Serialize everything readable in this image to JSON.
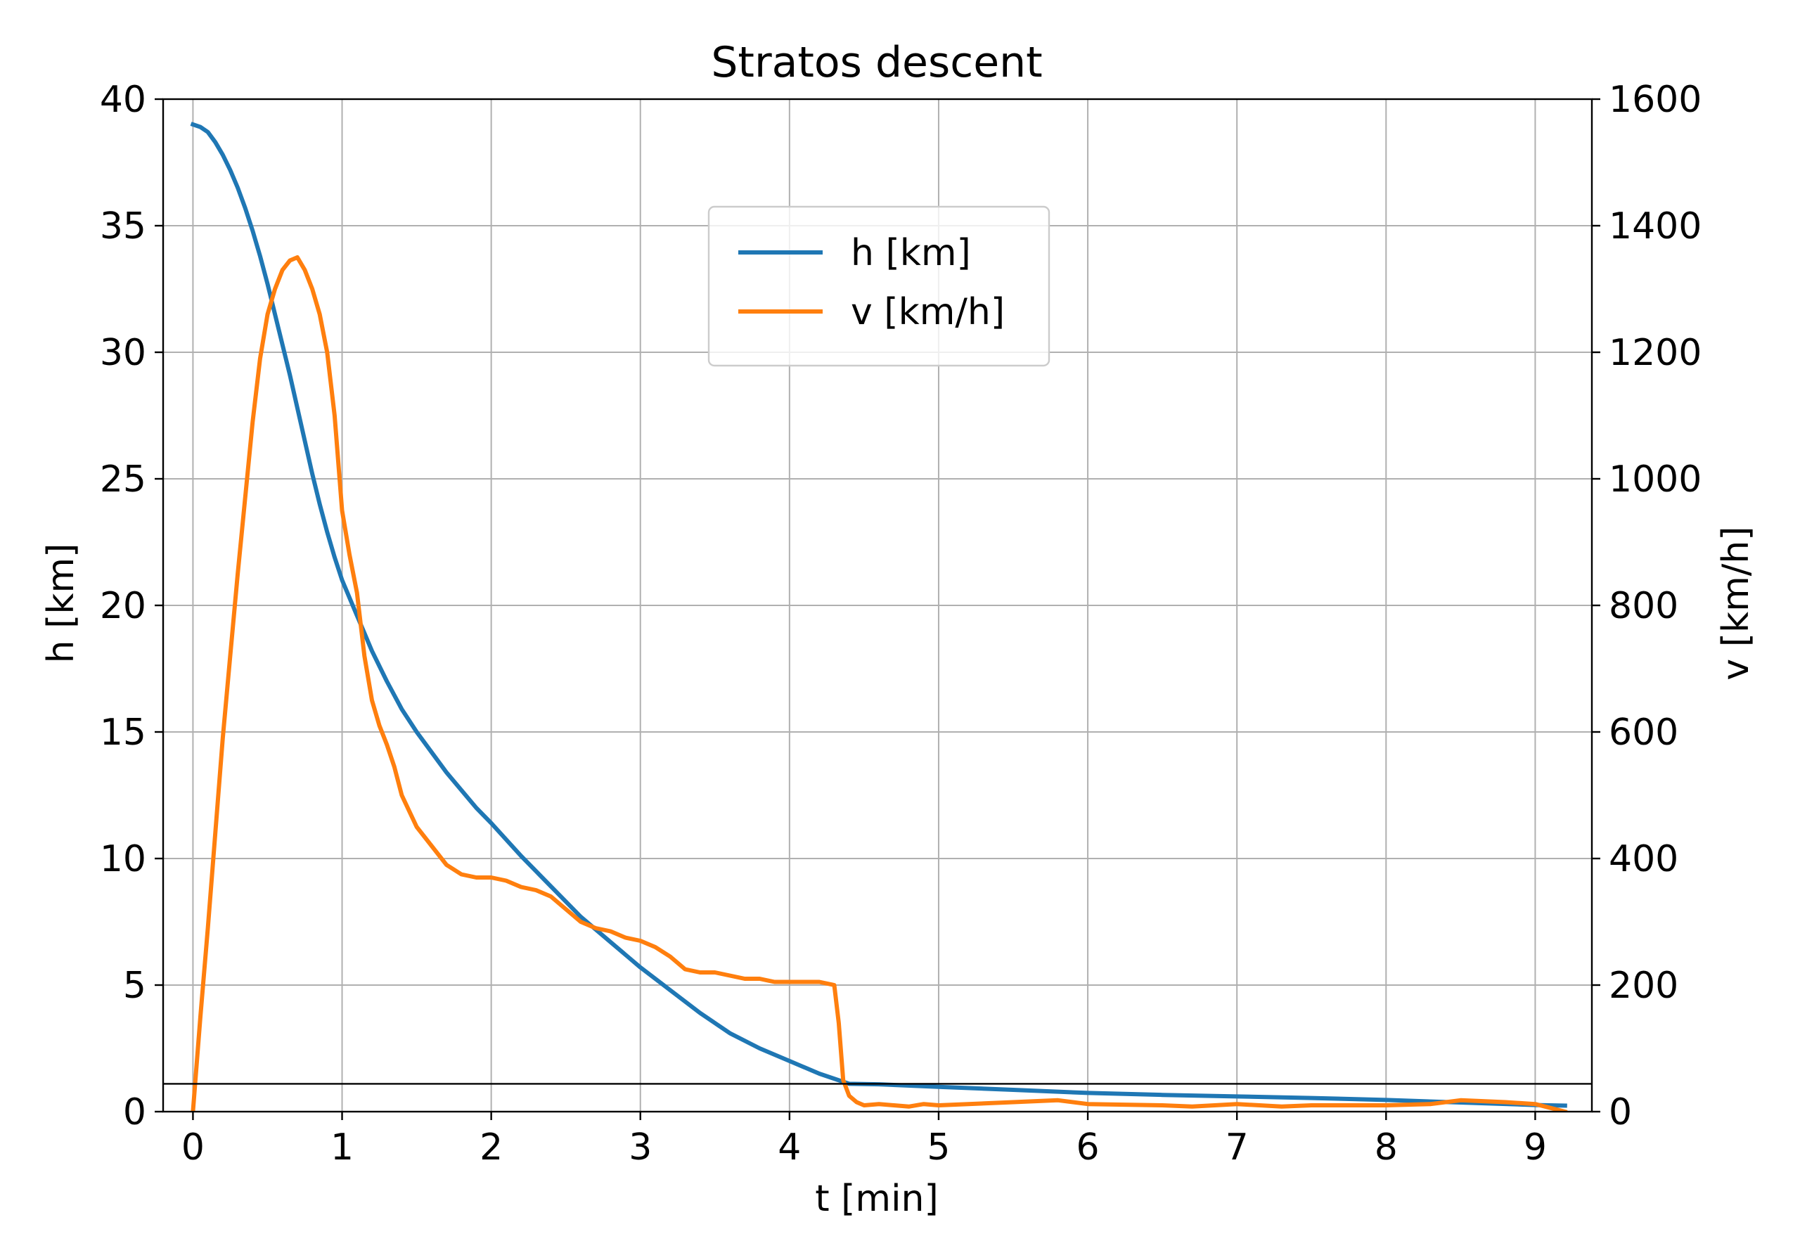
{
  "chart_data": {
    "type": "line",
    "title": "Stratos descent",
    "xlabel": "t [min]",
    "ylabel": "h [km]",
    "y2label": "v [km/h]",
    "xlim": [
      -0.2,
      9.38
    ],
    "ylim": [
      0,
      40
    ],
    "y2lim": [
      0,
      1600
    ],
    "x_ticks": [
      0,
      1,
      2,
      3,
      4,
      5,
      6,
      7,
      8,
      9
    ],
    "y_ticks": [
      0,
      5,
      10,
      15,
      20,
      25,
      30,
      35,
      40
    ],
    "y2_ticks": [
      0,
      200,
      400,
      600,
      800,
      1000,
      1200,
      1400,
      1600
    ],
    "grid": true,
    "legend_position": "upper-center",
    "reference_line_h": 1.1,
    "series": [
      {
        "name": "h [km]",
        "axis": "left",
        "color": "#1f77b4",
        "x": [
          0,
          0.05,
          0.1,
          0.15,
          0.2,
          0.25,
          0.3,
          0.35,
          0.4,
          0.45,
          0.5,
          0.55,
          0.6,
          0.65,
          0.7,
          0.75,
          0.8,
          0.85,
          0.9,
          0.95,
          1.0,
          1.1,
          1.2,
          1.3,
          1.4,
          1.5,
          1.6,
          1.7,
          1.8,
          1.9,
          2.0,
          2.2,
          2.4,
          2.6,
          2.8,
          3.0,
          3.2,
          3.4,
          3.6,
          3.8,
          4.0,
          4.2,
          4.4,
          4.6,
          5.0,
          5.5,
          6.0,
          6.5,
          7.0,
          7.5,
          8.0,
          8.5,
          9.0,
          9.2
        ],
        "values": [
          39.0,
          38.9,
          38.7,
          38.3,
          37.8,
          37.2,
          36.5,
          35.7,
          34.8,
          33.8,
          32.7,
          31.5,
          30.3,
          29.1,
          27.8,
          26.5,
          25.2,
          24.0,
          22.9,
          21.9,
          21.0,
          19.6,
          18.2,
          17.0,
          15.9,
          15.0,
          14.2,
          13.4,
          12.7,
          12.0,
          11.4,
          10.1,
          8.9,
          7.7,
          6.7,
          5.7,
          4.8,
          3.9,
          3.1,
          2.5,
          2.0,
          1.5,
          1.1,
          1.08,
          0.98,
          0.86,
          0.74,
          0.66,
          0.6,
          0.54,
          0.46,
          0.36,
          0.26,
          0.24
        ]
      },
      {
        "name": "v [km/h]",
        "axis": "right",
        "color": "#ff7f0e",
        "x": [
          0,
          0.05,
          0.1,
          0.15,
          0.2,
          0.25,
          0.3,
          0.35,
          0.4,
          0.45,
          0.5,
          0.55,
          0.6,
          0.65,
          0.7,
          0.75,
          0.8,
          0.85,
          0.9,
          0.95,
          1.0,
          1.05,
          1.1,
          1.15,
          1.2,
          1.25,
          1.3,
          1.35,
          1.4,
          1.5,
          1.6,
          1.7,
          1.8,
          1.9,
          2.0,
          2.1,
          2.2,
          2.3,
          2.4,
          2.5,
          2.6,
          2.7,
          2.8,
          2.9,
          3.0,
          3.1,
          3.2,
          3.3,
          3.4,
          3.5,
          3.6,
          3.7,
          3.8,
          3.9,
          4.0,
          4.1,
          4.2,
          4.3,
          4.33,
          4.36,
          4.4,
          4.45,
          4.5,
          4.6,
          4.7,
          4.8,
          4.9,
          5.0,
          5.5,
          5.8,
          6.0,
          6.5,
          6.7,
          7.0,
          7.3,
          7.5,
          8.0,
          8.3,
          8.5,
          8.8,
          9.0,
          9.2
        ],
        "values": [
          0,
          150,
          290,
          440,
          590,
          720,
          850,
          970,
          1090,
          1190,
          1260,
          1300,
          1330,
          1345,
          1350,
          1330,
          1300,
          1260,
          1200,
          1100,
          950,
          880,
          820,
          720,
          650,
          610,
          580,
          545,
          500,
          450,
          420,
          390,
          375,
          370,
          370,
          365,
          355,
          350,
          340,
          320,
          300,
          290,
          285,
          275,
          270,
          260,
          245,
          225,
          220,
          220,
          215,
          210,
          210,
          205,
          205,
          205,
          205,
          200,
          140,
          50,
          25,
          15,
          10,
          12,
          10,
          8,
          12,
          10,
          15,
          18,
          12,
          10,
          8,
          12,
          8,
          10,
          10,
          12,
          18,
          15,
          12,
          0
        ]
      }
    ]
  }
}
